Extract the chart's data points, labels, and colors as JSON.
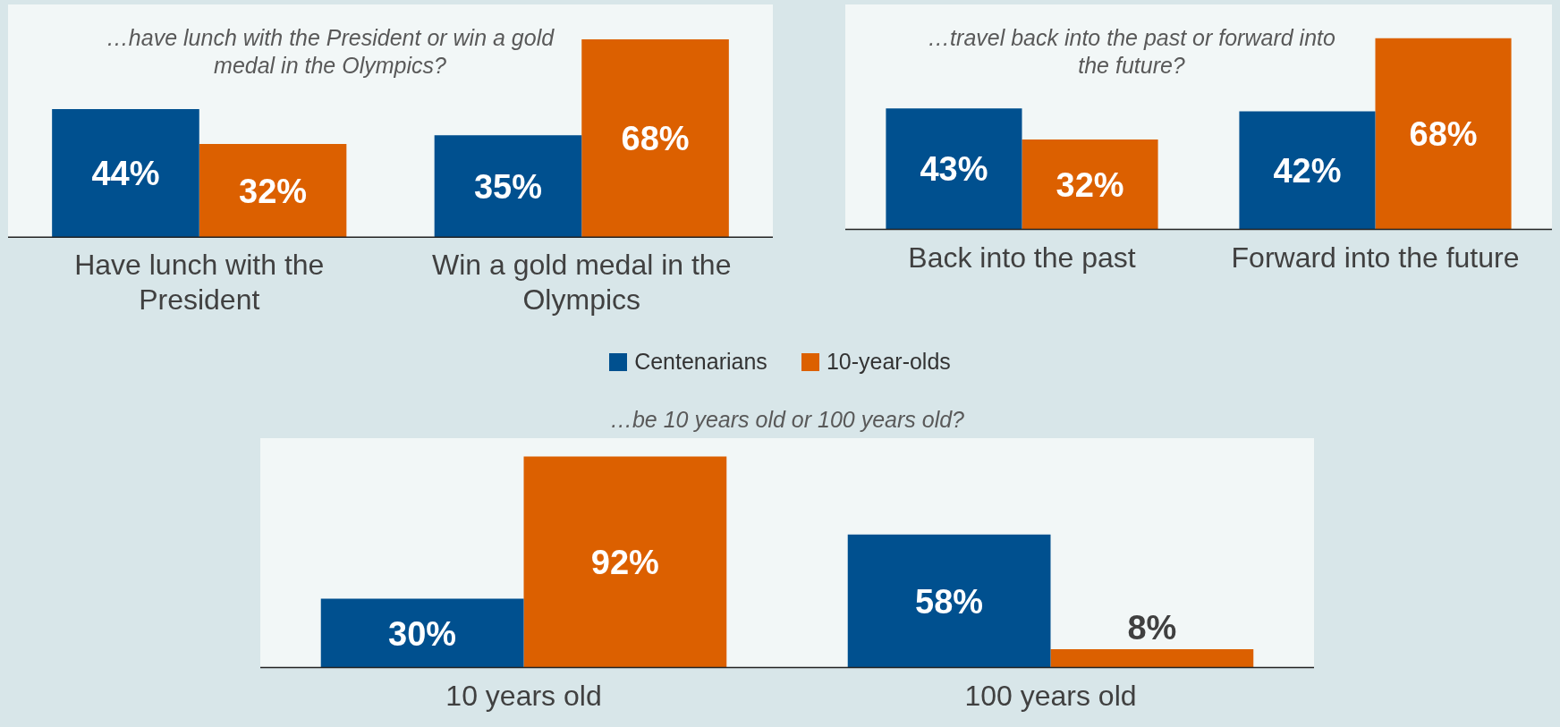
{
  "chart_data": [
    {
      "type": "bar",
      "title": "…have lunch with the President or win a gold medal in the Olympics?",
      "categories": [
        "Have lunch with the President",
        "Win a gold medal in the Olympics"
      ],
      "grid": false,
      "legend": false,
      "tick_labels": "x",
      "series": [
        {
          "color": "#00508f",
          "values": [
            44,
            35
          ],
          "value_labels": [
            "44%",
            "35%"
          ]
        },
        {
          "color": "#dc6000",
          "values": [
            32,
            68
          ],
          "value_labels": [
            "32%",
            "68%"
          ]
        }
      ]
    },
    {
      "type": "bar",
      "title": "…travel back into the past or forward into the future?",
      "categories": [
        "Back into the past",
        "Forward into the future"
      ],
      "grid": false,
      "legend": false,
      "tick_labels": "x",
      "series": [
        {
          "color": "#00508f",
          "values": [
            43,
            42
          ],
          "value_labels": [
            "43%",
            "42%"
          ]
        },
        {
          "color": "#dc6000",
          "values": [
            32,
            68
          ],
          "value_labels": [
            "32%",
            "68%"
          ]
        }
      ]
    },
    {
      "type": "bar",
      "title": "…be 10 years old or 100 years old?",
      "categories": [
        "10 years old",
        "100 years old"
      ],
      "grid": false,
      "legend": "top",
      "tick_labels": "x",
      "series": [
        {
          "name": "Centenarians",
          "color": "#00508f",
          "values": [
            30,
            58
          ],
          "value_labels": [
            "30%",
            "58%"
          ]
        },
        {
          "name": "10-year-olds",
          "color": "#dc6000",
          "values": [
            92,
            8
          ],
          "value_labels": [
            "92%",
            "8%"
          ]
        }
      ]
    }
  ]
}
